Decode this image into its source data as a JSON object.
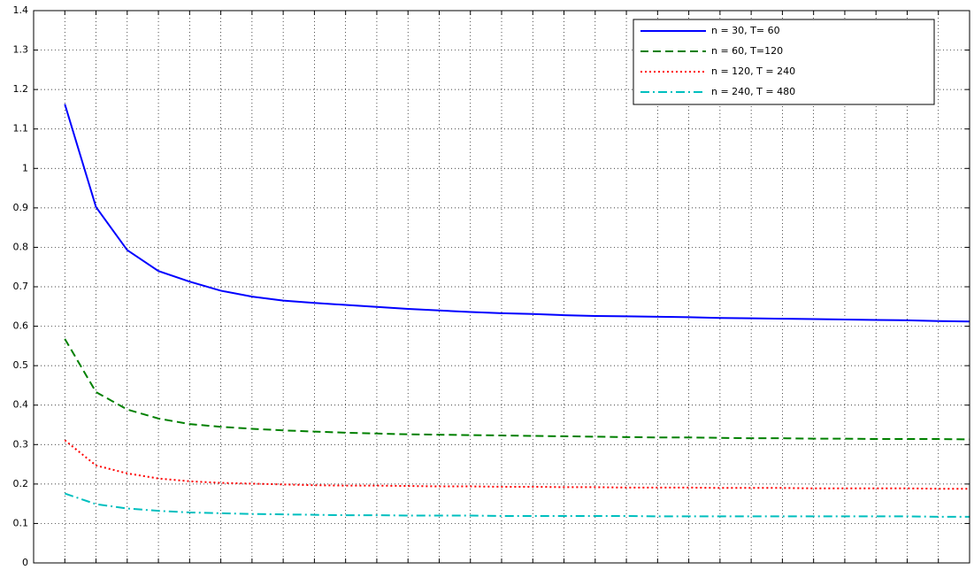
{
  "chart_data": {
    "type": "line",
    "title": "",
    "xlabel": "",
    "ylabel": "",
    "xlim": [
      0,
      30
    ],
    "ylim": [
      0,
      1.4
    ],
    "xticks": [
      0,
      1,
      2,
      3,
      4,
      5,
      6,
      7,
      8,
      9,
      10,
      11,
      12,
      13,
      14,
      15,
      16,
      17,
      18,
      19,
      20,
      21,
      22,
      23,
      24,
      25,
      26,
      27,
      28,
      29,
      30
    ],
    "yticks": [
      0,
      0.1,
      0.2,
      0.3,
      0.4,
      0.5,
      0.6,
      0.7,
      0.8,
      0.9,
      1,
      1.1,
      1.2,
      1.3,
      1.4
    ],
    "grid": true,
    "legend_position": "top-right",
    "x": [
      1,
      2,
      3,
      4,
      5,
      6,
      7,
      8,
      9,
      10,
      11,
      12,
      13,
      14,
      15,
      16,
      17,
      18,
      19,
      20,
      21,
      22,
      23,
      24,
      25,
      26,
      27,
      28,
      29,
      30
    ],
    "series": [
      {
        "name": "n = 30, T= 60",
        "color": "#0000ff",
        "dash": "solid",
        "values": [
          1.163,
          0.902,
          0.793,
          0.74,
          0.713,
          0.69,
          0.675,
          0.665,
          0.659,
          0.654,
          0.649,
          0.644,
          0.64,
          0.636,
          0.633,
          0.631,
          0.628,
          0.626,
          0.625,
          0.624,
          0.623,
          0.621,
          0.62,
          0.619,
          0.618,
          0.617,
          0.616,
          0.615,
          0.613,
          0.612
        ]
      },
      {
        "name": "n = 60, T=120",
        "color": "#008000",
        "dash": "dashed",
        "values": [
          0.568,
          0.433,
          0.389,
          0.366,
          0.352,
          0.345,
          0.34,
          0.336,
          0.333,
          0.33,
          0.328,
          0.326,
          0.325,
          0.324,
          0.323,
          0.322,
          0.321,
          0.32,
          0.319,
          0.318,
          0.318,
          0.317,
          0.316,
          0.316,
          0.315,
          0.315,
          0.314,
          0.314,
          0.314,
          0.313
        ]
      },
      {
        "name": "n = 120, T = 240",
        "color": "#ff0000",
        "dash": "dotted",
        "values": [
          0.311,
          0.247,
          0.227,
          0.214,
          0.207,
          0.203,
          0.201,
          0.199,
          0.197,
          0.196,
          0.196,
          0.195,
          0.194,
          0.194,
          0.193,
          0.193,
          0.192,
          0.192,
          0.191,
          0.191,
          0.191,
          0.19,
          0.19,
          0.19,
          0.189,
          0.189,
          0.189,
          0.189,
          0.188,
          0.188
        ]
      },
      {
        "name": "n = 240, T = 480",
        "color": "#00bfbf",
        "dash": "dashdot",
        "values": [
          0.176,
          0.149,
          0.138,
          0.132,
          0.128,
          0.126,
          0.124,
          0.123,
          0.122,
          0.121,
          0.121,
          0.12,
          0.12,
          0.12,
          0.119,
          0.119,
          0.119,
          0.119,
          0.119,
          0.118,
          0.118,
          0.118,
          0.118,
          0.118,
          0.118,
          0.118,
          0.118,
          0.118,
          0.117,
          0.117
        ]
      }
    ]
  }
}
